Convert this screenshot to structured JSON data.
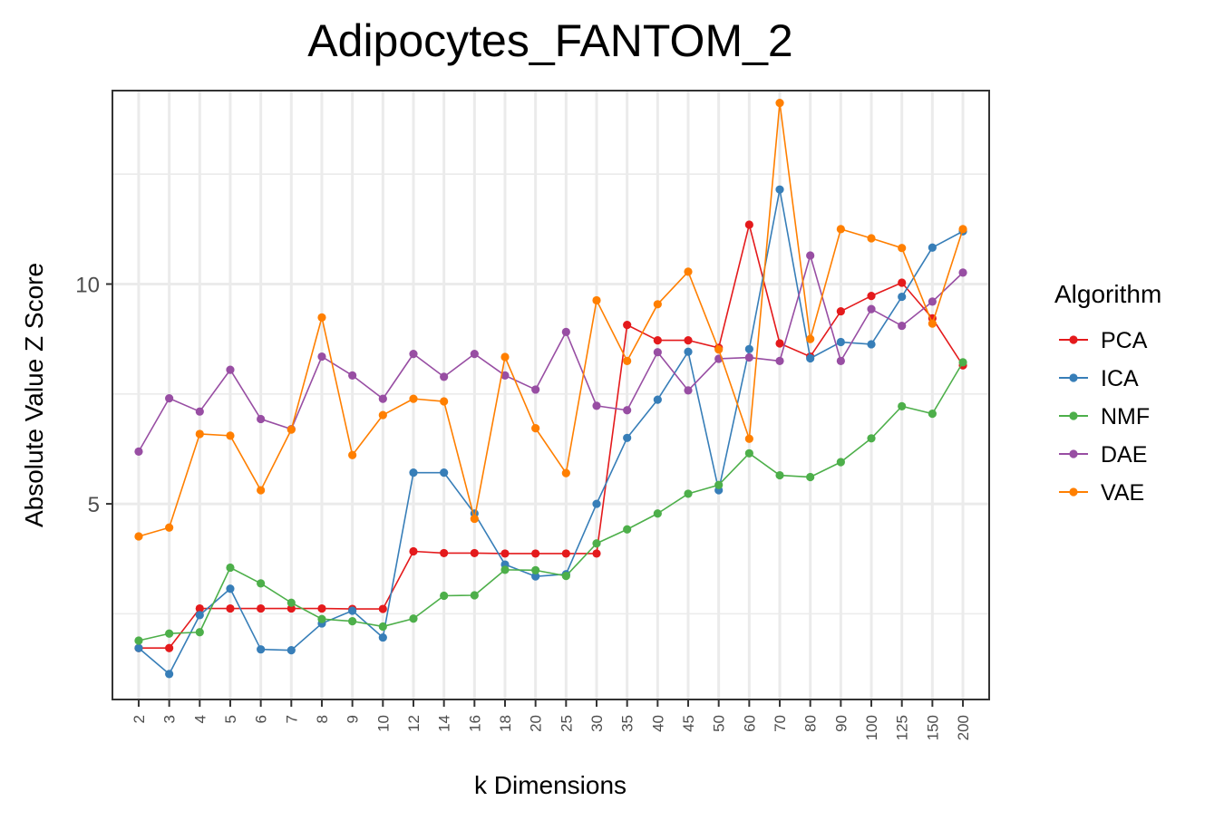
{
  "chart_data": {
    "type": "line",
    "title": "Adipocytes_FANTOM_2",
    "xlabel": "k Dimensions",
    "ylabel": "Absolute Value Z Score",
    "categories": [
      "2",
      "3",
      "4",
      "5",
      "6",
      "7",
      "8",
      "9",
      "10",
      "12",
      "14",
      "16",
      "18",
      "20",
      "25",
      "30",
      "35",
      "40",
      "45",
      "50",
      "60",
      "70",
      "80",
      "90",
      "100",
      "125",
      "150",
      "200"
    ],
    "ylim": [
      0.55,
      14.4
    ],
    "yticks": [
      5,
      10
    ],
    "grid": true,
    "legend": {
      "title": "Algorithm",
      "position": "right"
    },
    "series": [
      {
        "name": "PCA",
        "color": "#e41a1c",
        "values": [
          1.72,
          1.72,
          2.62,
          2.62,
          2.62,
          2.62,
          2.62,
          2.61,
          2.61,
          3.92,
          3.88,
          3.88,
          3.87,
          3.87,
          3.87,
          3.87,
          9.07,
          8.72,
          8.72,
          8.55,
          11.35,
          8.65,
          8.35,
          9.38,
          9.73,
          10.03,
          9.22,
          8.15
        ]
      },
      {
        "name": "ICA",
        "color": "#377eb8",
        "values": [
          1.72,
          1.13,
          2.47,
          3.07,
          1.69,
          1.67,
          2.28,
          2.57,
          1.96,
          5.71,
          5.71,
          4.78,
          3.62,
          3.35,
          3.4,
          5.0,
          6.5,
          7.37,
          8.46,
          5.31,
          8.52,
          12.15,
          8.31,
          8.68,
          8.63,
          9.71,
          10.83,
          11.2
        ]
      },
      {
        "name": "NMF",
        "color": "#4daf4a",
        "values": [
          1.89,
          2.05,
          2.08,
          3.55,
          3.19,
          2.75,
          2.38,
          2.33,
          2.21,
          2.39,
          2.91,
          2.92,
          3.5,
          3.49,
          3.36,
          4.1,
          4.42,
          4.78,
          5.23,
          5.43,
          6.15,
          5.65,
          5.61,
          5.95,
          6.49,
          7.22,
          7.05,
          8.22
        ]
      },
      {
        "name": "DAE",
        "color": "#984ea3",
        "values": [
          6.19,
          7.4,
          7.1,
          8.05,
          6.93,
          6.7,
          8.35,
          7.92,
          7.39,
          8.41,
          7.89,
          8.41,
          7.92,
          7.6,
          8.91,
          7.23,
          7.13,
          8.45,
          7.58,
          8.3,
          8.33,
          8.25,
          10.65,
          8.25,
          9.43,
          9.05,
          9.6,
          10.26
        ]
      },
      {
        "name": "VAE",
        "color": "#ff7f00",
        "values": [
          4.26,
          4.46,
          6.59,
          6.55,
          5.31,
          6.69,
          9.24,
          6.11,
          7.02,
          7.39,
          7.33,
          4.66,
          8.34,
          6.72,
          5.7,
          9.63,
          8.25,
          9.54,
          10.28,
          8.51,
          6.48,
          14.12,
          8.75,
          11.25,
          11.04,
          10.82,
          9.1,
          11.25
        ]
      }
    ]
  }
}
